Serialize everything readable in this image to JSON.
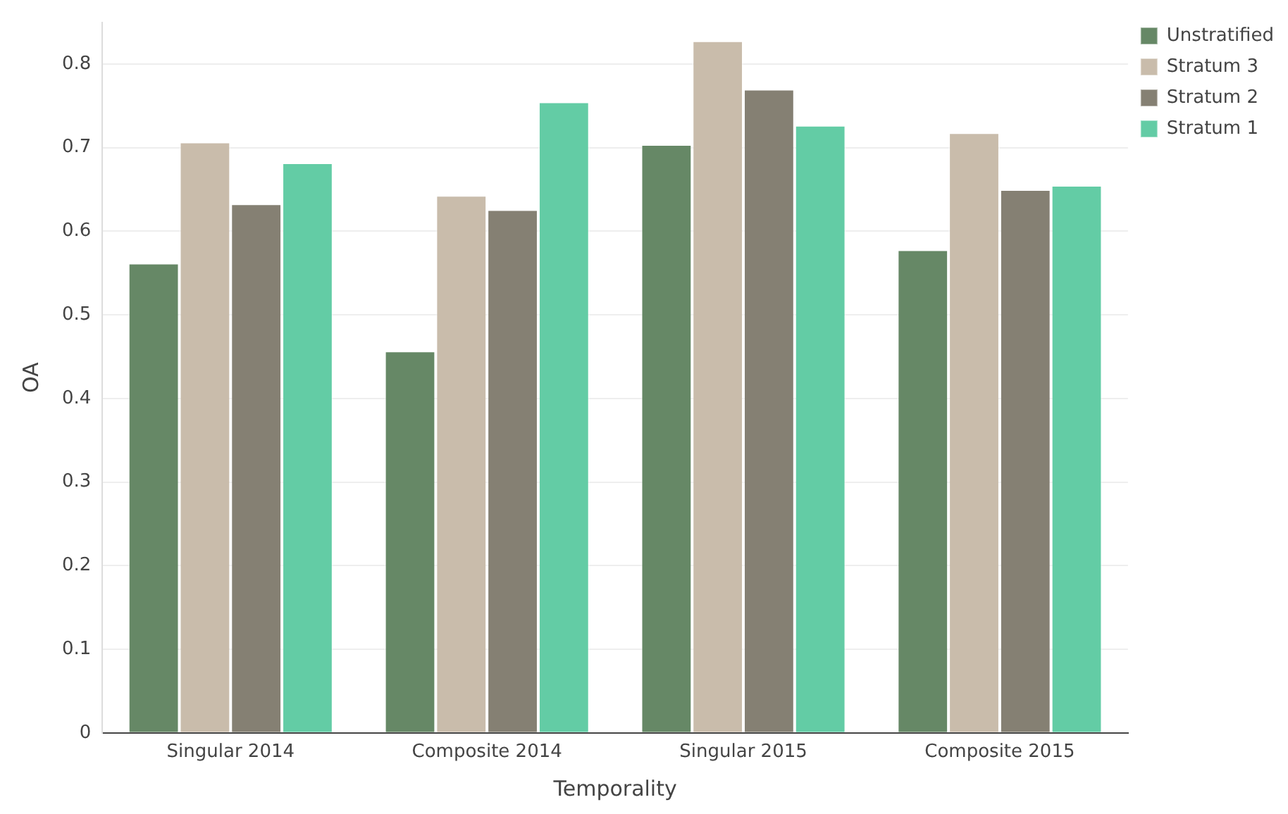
{
  "chart_data": {
    "type": "bar",
    "xlabel": "Temporality",
    "ylabel": "OA",
    "categories": [
      "Singular 2014",
      "Composite 2014",
      "Singular 2015",
      "Composite 2015"
    ],
    "series": [
      {
        "name": "Unstratified",
        "color": "#668866",
        "values": [
          0.562,
          0.457,
          0.704,
          0.578
        ]
      },
      {
        "name": "Stratum 3",
        "color": "#c9bcab",
        "values": [
          0.707,
          0.643,
          0.828,
          0.718
        ]
      },
      {
        "name": "Stratum 2",
        "color": "#858073",
        "values": [
          0.633,
          0.626,
          0.77,
          0.65
        ]
      },
      {
        "name": "Stratum 1",
        "color": "#63cca5",
        "values": [
          0.682,
          0.755,
          0.727,
          0.655
        ]
      }
    ],
    "ylim": [
      0,
      0.85
    ],
    "yticks": [
      0,
      0.1,
      0.2,
      0.3,
      0.4,
      0.5,
      0.6,
      0.7,
      0.8
    ],
    "grid": "y",
    "legend": "top right"
  }
}
